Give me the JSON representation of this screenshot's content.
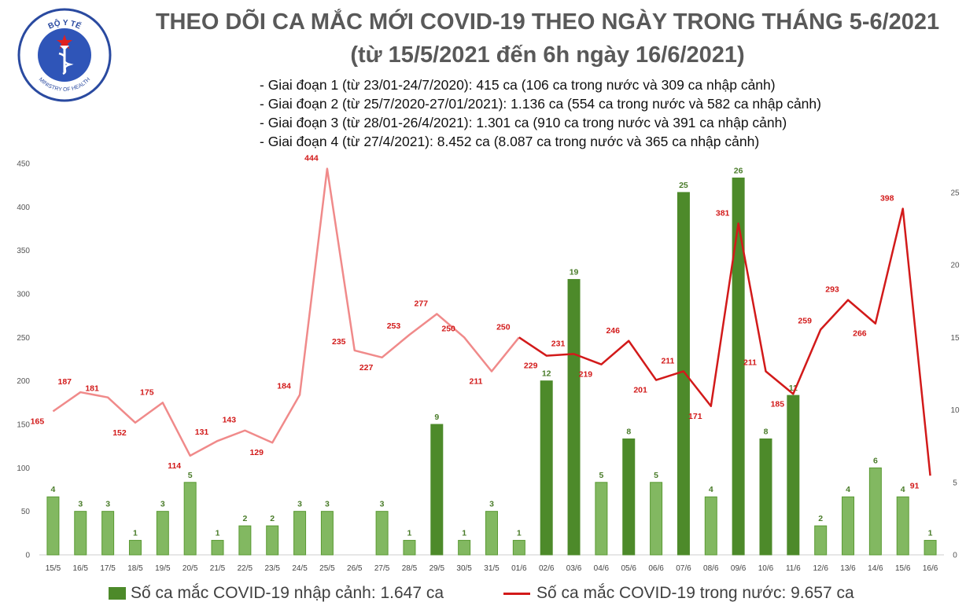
{
  "header": {
    "title_line1": "THEO DÕI CA MẮC MỚI COVID-19 THEO NGÀY TRONG THÁNG 5-6/2021",
    "title_line2": "(từ 15/5/2021 đến 6h ngày 16/6/2021)",
    "phases": [
      "- Giai đoạn 1 (từ 23/01-24/7/2020): 415 ca (106 ca trong nước và 309 ca nhập cảnh)",
      "- Giai đoạn 2 (từ 25/7/2020-27/01/2021): 1.136 ca (554 ca trong nước và 582 ca nhập cảnh)",
      "- Giai đoạn 3 (từ 28/01-26/4/2021): 1.301 ca (910 ca trong nước và 391 ca nhập cảnh)",
      "- Giai đoạn 4 (từ 27/4/2021): 8.452 ca (8.087 ca trong nước và 365 ca nhập cảnh)"
    ]
  },
  "logo": {
    "name": "ministry-of-health-logo",
    "text_top": "BỘ Y TẾ",
    "text_bottom": "MINISTRY OF HEALTH"
  },
  "colors": {
    "bar": "#4d8a2a",
    "bar_light": "#6cab45",
    "line": "#d21a1a",
    "line_light": "#f08a8a",
    "title": "#595959"
  },
  "chart_data": {
    "type": "bar+line",
    "categories": [
      "15/5",
      "16/5",
      "17/5",
      "18/5",
      "19/5",
      "20/5",
      "21/5",
      "22/5",
      "23/5",
      "24/5",
      "25/5",
      "26/5",
      "27/5",
      "28/5",
      "29/5",
      "30/5",
      "31/5",
      "01/6",
      "02/6",
      "03/6",
      "04/6",
      "05/6",
      "06/6",
      "07/6",
      "08/6",
      "09/6",
      "10/6",
      "11/6",
      "12/6",
      "13/6",
      "14/6",
      "15/6",
      "16/6"
    ],
    "left_axis": {
      "ticks": [
        0,
        50,
        100,
        150,
        200,
        250,
        300,
        350,
        400,
        450
      ],
      "range": [
        0,
        450
      ]
    },
    "right_axis": {
      "ticks": [
        0,
        5,
        10,
        15,
        20,
        25
      ],
      "range": [
        0,
        27
      ]
    },
    "series": [
      {
        "name": "Số ca mắc COVID-19 nhập cảnh: 1.647 ca",
        "type": "bar",
        "axis": "right",
        "values": [
          4,
          3,
          3,
          1,
          3,
          5,
          1,
          2,
          2,
          3,
          3,
          null,
          3,
          1,
          9,
          1,
          3,
          1,
          12,
          19,
          5,
          8,
          5,
          25,
          4,
          26,
          8,
          11,
          2,
          4,
          6,
          4,
          1
        ]
      },
      {
        "name": "Số ca mắc COVID-19 trong nước: 9.657 ca",
        "type": "line",
        "axis": "left",
        "values": [
          165,
          187,
          181,
          152,
          175,
          114,
          131,
          143,
          129,
          184,
          444,
          235,
          227,
          253,
          277,
          250,
          211,
          250,
          229,
          231,
          219,
          246,
          201,
          211,
          171,
          381,
          211,
          185,
          259,
          293,
          266,
          398,
          91
        ]
      }
    ]
  }
}
